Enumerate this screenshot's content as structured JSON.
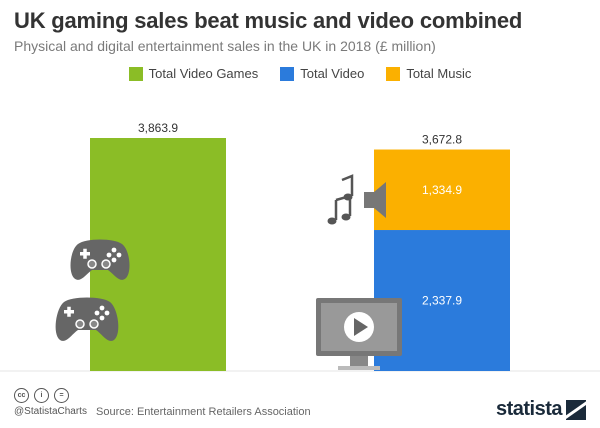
{
  "title": "UK gaming sales beat music and video combined",
  "subtitle": "Physical and digital entertainment sales in the UK in 2018 (£ million)",
  "legend": [
    {
      "label": "Total Video Games",
      "color": "#8bbd26"
    },
    {
      "label": "Total Video",
      "color": "#2b7bdc"
    },
    {
      "label": "Total Music",
      "color": "#fbb000"
    }
  ],
  "chart_data": {
    "type": "bar",
    "stacked": true,
    "categories": [
      "",
      ""
    ],
    "series": [
      {
        "name": "Total Video Games",
        "color": "#8bbd26",
        "values": [
          3863.9,
          0
        ]
      },
      {
        "name": "Total Video",
        "color": "#2b7bdc",
        "values": [
          0,
          2337.9
        ]
      },
      {
        "name": "Total Music",
        "color": "#fbb000",
        "values": [
          0,
          1334.9
        ]
      }
    ],
    "data_labels": [
      "3,863.9",
      "2,337.9",
      "1,334.9"
    ],
    "totals": [
      3863.9,
      3672.8
    ],
    "total_labels": [
      "3,863.9",
      "3,672.8"
    ],
    "ylim": [
      0,
      3863.9
    ],
    "grid": false
  },
  "footer": {
    "license_icons": [
      "cc-icon",
      "by-icon",
      "nd-icon"
    ],
    "handle": "@StatistaCharts",
    "source": "Source: Entertainment Retailers Association",
    "brand": "statista"
  }
}
